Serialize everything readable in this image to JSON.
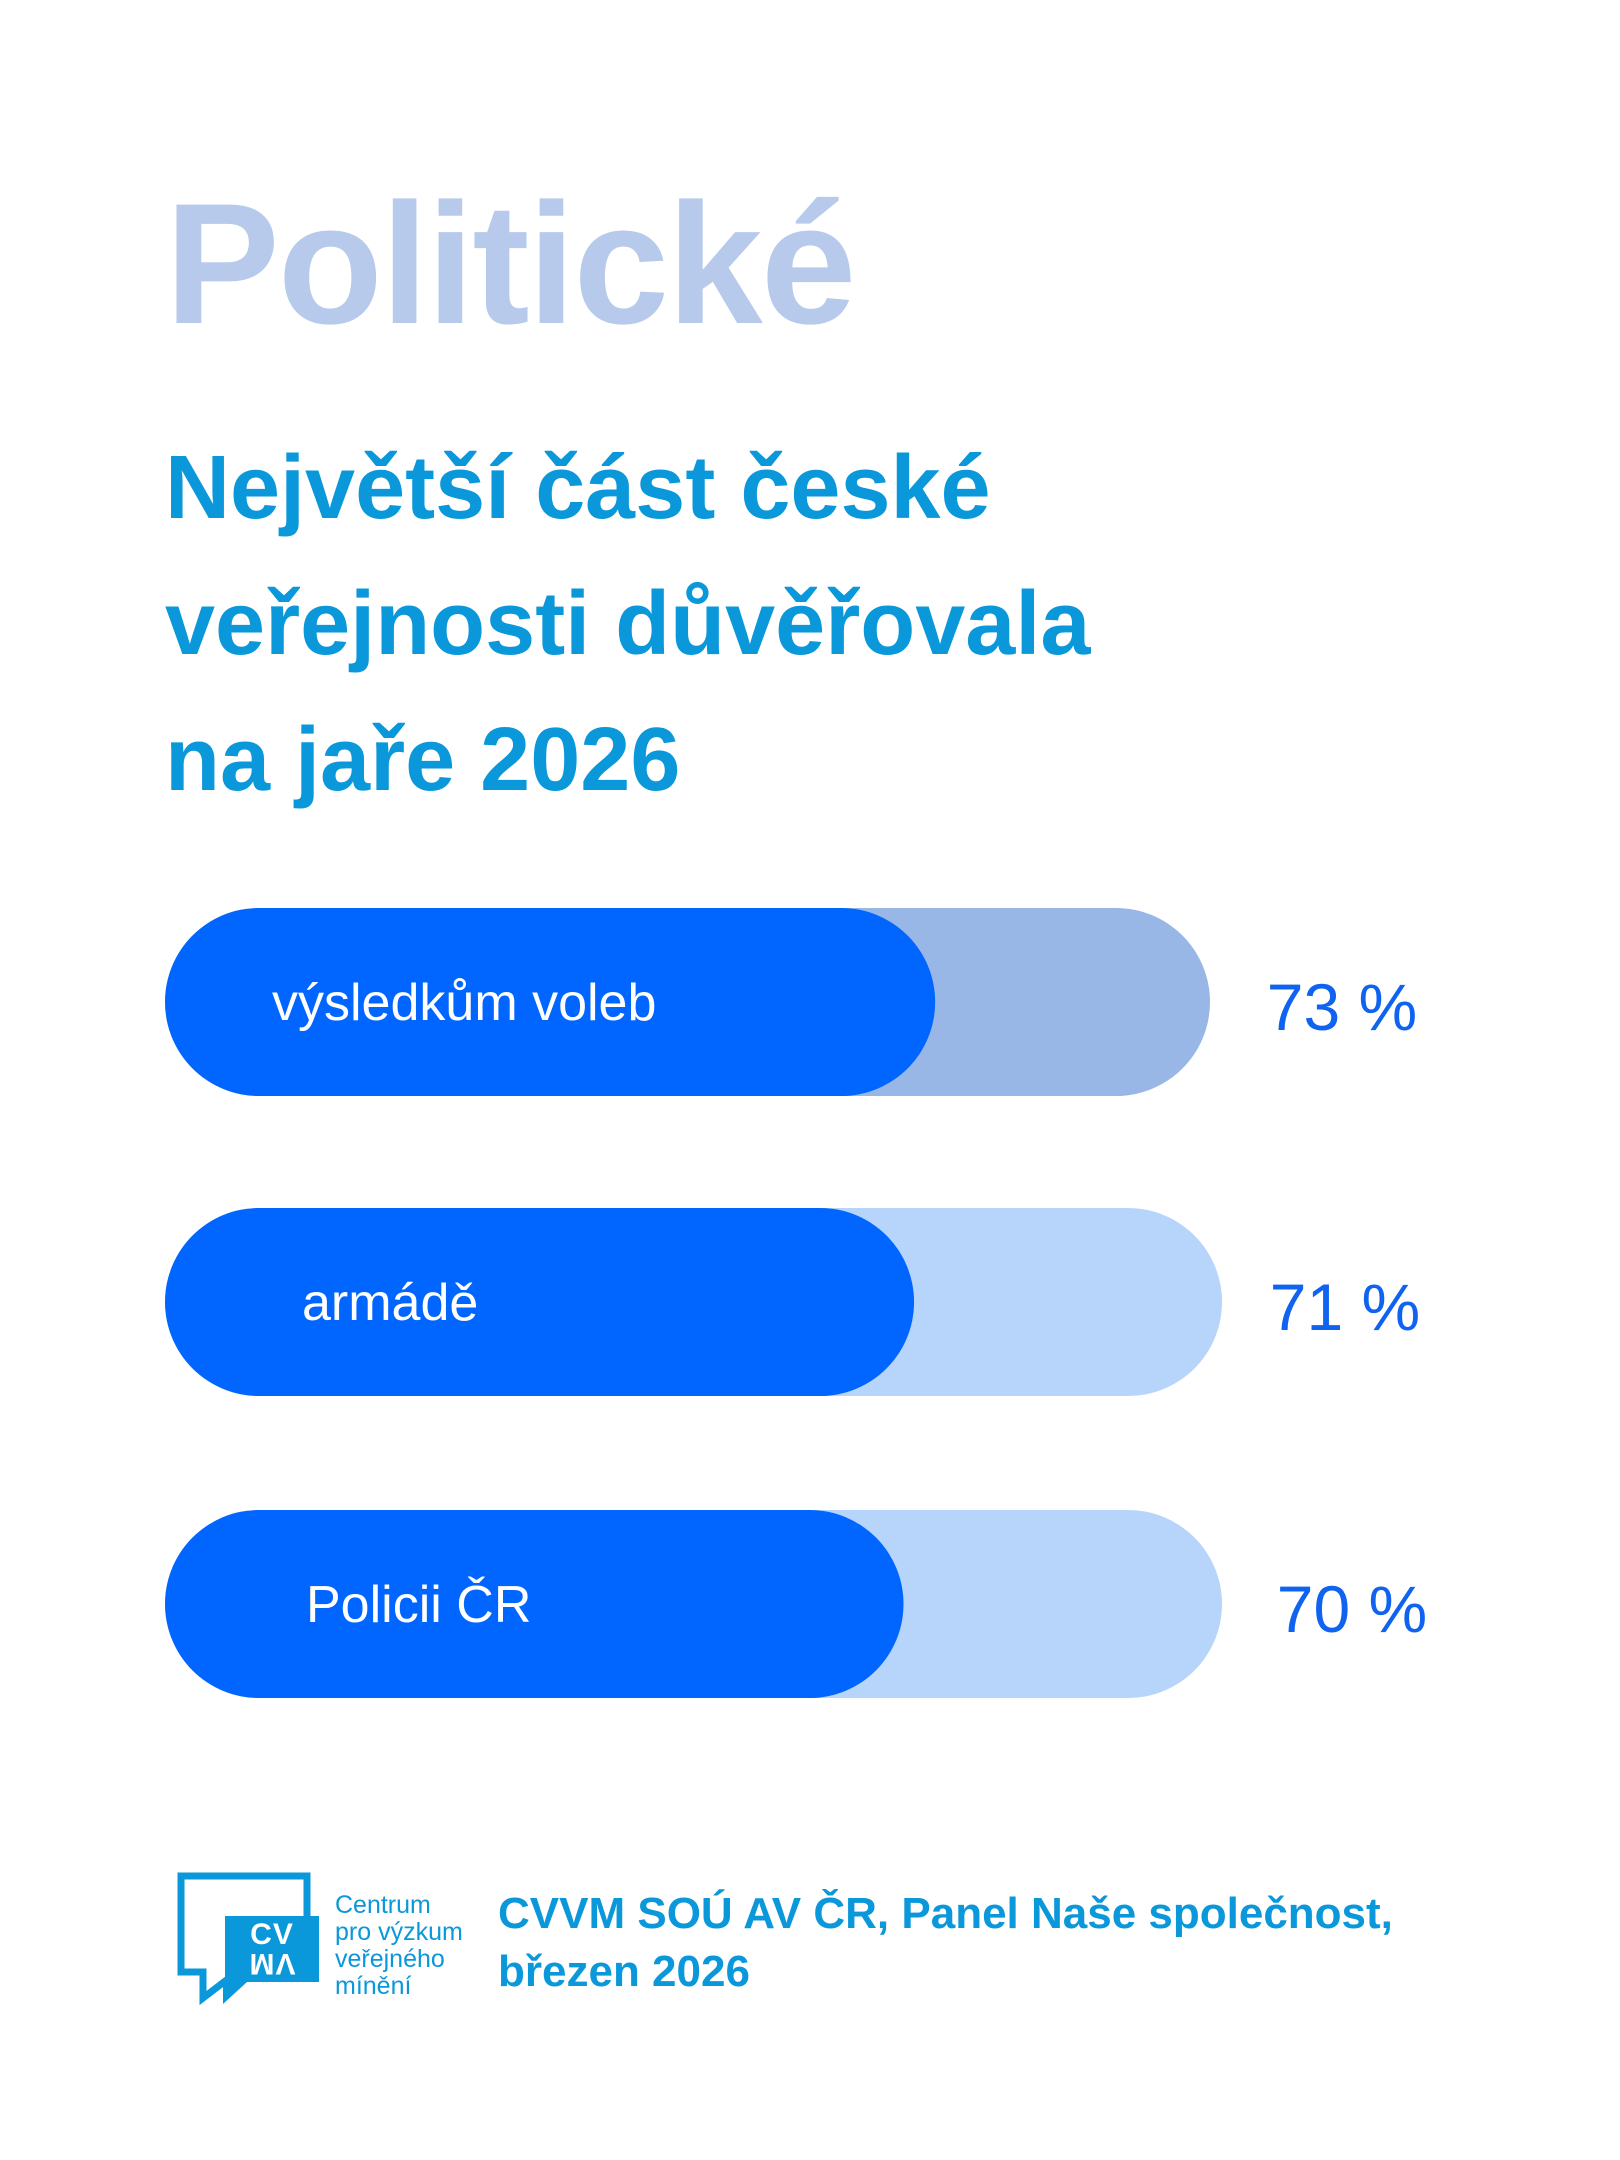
{
  "category": "Politické",
  "headline_lines": [
    "Největší část české",
    "veřejnosti důvěřovala",
    "na jaře 2026"
  ],
  "chart_data": {
    "type": "bar",
    "orientation": "horizontal",
    "categories": [
      "výsledkům voleb",
      "armádě",
      "Policii ČR"
    ],
    "values": [
      73,
      71,
      70
    ],
    "value_labels": [
      "73 %",
      "71 %",
      "70 %"
    ],
    "unit": "%",
    "xlim": [
      0,
      100
    ],
    "grid": false,
    "colors": {
      "fill": "#0066ff",
      "track_first": "#98b7e6",
      "track": "#b7d4fb",
      "value_text": "#0f63f0"
    }
  },
  "footer": {
    "logo": {
      "mark_text": "CVVM",
      "name_lines": [
        "Centrum",
        "pro výzkum",
        "veřejného",
        "mínění"
      ]
    },
    "source_lines": [
      "CVVM SOÚ AV ČR, Panel Naše společnost,",
      "březen 2026"
    ]
  },
  "colors": {
    "category": "#b7caeb",
    "headline": "#0a98da",
    "accent": "#0066ff",
    "source": "#0a98da"
  }
}
